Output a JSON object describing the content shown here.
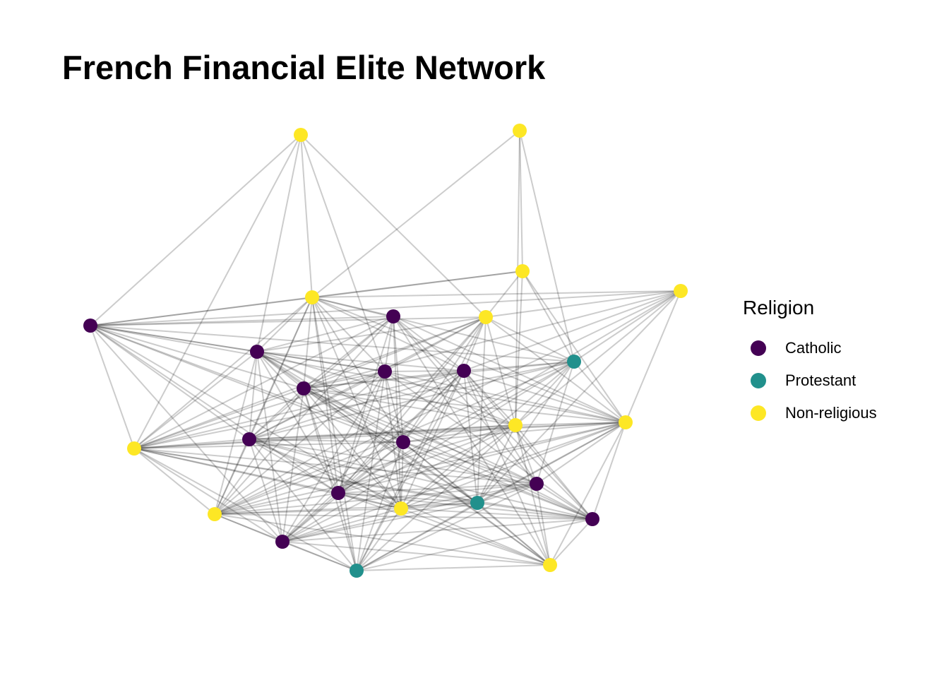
{
  "title": "French Financial Elite Network",
  "legend": {
    "title": "Religion",
    "items": [
      {
        "label": "Catholic",
        "color": "#440154"
      },
      {
        "label": "Protestant",
        "color": "#21908C"
      },
      {
        "label": "Non-religious",
        "color": "#FDE725"
      }
    ]
  },
  "edge_color": "#000000",
  "nodes": [
    {
      "id": "n1",
      "religion": "Non-religious"
    },
    {
      "id": "n2",
      "religion": "Non-religious"
    },
    {
      "id": "n3",
      "religion": "Non-religious"
    },
    {
      "id": "n4",
      "religion": "Non-religious"
    },
    {
      "id": "n5",
      "religion": "Non-religious"
    },
    {
      "id": "n6",
      "religion": "Catholic"
    },
    {
      "id": "n7",
      "religion": "Catholic"
    },
    {
      "id": "n8",
      "religion": "Non-religious"
    },
    {
      "id": "n9",
      "religion": "Catholic"
    },
    {
      "id": "n10",
      "religion": "Protestant"
    },
    {
      "id": "n11",
      "religion": "Catholic"
    },
    {
      "id": "n12",
      "religion": "Catholic"
    },
    {
      "id": "n13",
      "religion": "Catholic"
    },
    {
      "id": "n14",
      "religion": "Non-religious"
    },
    {
      "id": "n15",
      "religion": "Non-religious"
    },
    {
      "id": "n16",
      "religion": "Non-religious"
    },
    {
      "id": "n17",
      "religion": "Catholic"
    },
    {
      "id": "n18",
      "religion": "Catholic"
    },
    {
      "id": "n19",
      "religion": "Catholic"
    },
    {
      "id": "n20",
      "religion": "Non-religious"
    },
    {
      "id": "n21",
      "religion": "Protestant"
    },
    {
      "id": "n22",
      "religion": "Catholic"
    },
    {
      "id": "n23",
      "religion": "Catholic"
    },
    {
      "id": "n24",
      "religion": "Non-religious"
    },
    {
      "id": "n25",
      "religion": "Catholic"
    },
    {
      "id": "n26",
      "religion": "Non-religious"
    },
    {
      "id": "n27",
      "religion": "Protestant"
    }
  ],
  "edges": [
    [
      "n1",
      "n5"
    ],
    [
      "n1",
      "n11"
    ],
    [
      "n1",
      "n8"
    ],
    [
      "n1",
      "n6"
    ],
    [
      "n1",
      "n16"
    ],
    [
      "n1",
      "n9"
    ],
    [
      "n2",
      "n5"
    ],
    [
      "n2",
      "n10"
    ],
    [
      "n2",
      "n4"
    ],
    [
      "n2",
      "n14"
    ],
    [
      "n3",
      "n5"
    ],
    [
      "n3",
      "n10"
    ],
    [
      "n3",
      "n6"
    ],
    [
      "n3",
      "n8"
    ],
    [
      "n3",
      "n14"
    ],
    [
      "n3",
      "n12"
    ],
    [
      "n3",
      "n13"
    ],
    [
      "n3",
      "n21"
    ],
    [
      "n3",
      "n15"
    ],
    [
      "n3",
      "n22"
    ],
    [
      "n3",
      "n24"
    ],
    [
      "n4",
      "n5"
    ],
    [
      "n4",
      "n6"
    ],
    [
      "n4",
      "n8"
    ],
    [
      "n4",
      "n10"
    ],
    [
      "n4",
      "n15"
    ],
    [
      "n4",
      "n14"
    ],
    [
      "n5",
      "n6"
    ],
    [
      "n5",
      "n7"
    ],
    [
      "n5",
      "n9"
    ],
    [
      "n5",
      "n10"
    ],
    [
      "n5",
      "n11"
    ],
    [
      "n5",
      "n12"
    ],
    [
      "n5",
      "n13"
    ],
    [
      "n5",
      "n15"
    ],
    [
      "n5",
      "n16"
    ],
    [
      "n5",
      "n17"
    ],
    [
      "n5",
      "n18"
    ],
    [
      "n5",
      "n20"
    ],
    [
      "n5",
      "n22"
    ],
    [
      "n5",
      "n24"
    ],
    [
      "n5",
      "n27"
    ],
    [
      "n6",
      "n7"
    ],
    [
      "n6",
      "n8"
    ],
    [
      "n6",
      "n9"
    ],
    [
      "n6",
      "n10"
    ],
    [
      "n6",
      "n11"
    ],
    [
      "n6",
      "n13"
    ],
    [
      "n6",
      "n15"
    ],
    [
      "n6",
      "n16"
    ],
    [
      "n6",
      "n17"
    ],
    [
      "n6",
      "n18"
    ],
    [
      "n6",
      "n20"
    ],
    [
      "n6",
      "n22"
    ],
    [
      "n6",
      "n23"
    ],
    [
      "n6",
      "n25"
    ],
    [
      "n7",
      "n9"
    ],
    [
      "n7",
      "n11"
    ],
    [
      "n7",
      "n12"
    ],
    [
      "n7",
      "n13"
    ],
    [
      "n7",
      "n15"
    ],
    [
      "n7",
      "n16"
    ],
    [
      "n7",
      "n17"
    ],
    [
      "n7",
      "n18"
    ],
    [
      "n7",
      "n19"
    ],
    [
      "n7",
      "n20"
    ],
    [
      "n7",
      "n22"
    ],
    [
      "n7",
      "n23"
    ],
    [
      "n7",
      "n24"
    ],
    [
      "n7",
      "n26"
    ],
    [
      "n8",
      "n9"
    ],
    [
      "n8",
      "n10"
    ],
    [
      "n8",
      "n11"
    ],
    [
      "n8",
      "n12"
    ],
    [
      "n8",
      "n13"
    ],
    [
      "n8",
      "n14"
    ],
    [
      "n8",
      "n15"
    ],
    [
      "n8",
      "n16"
    ],
    [
      "n8",
      "n17"
    ],
    [
      "n8",
      "n18"
    ],
    [
      "n8",
      "n21"
    ],
    [
      "n8",
      "n22"
    ],
    [
      "n8",
      "n25"
    ],
    [
      "n8",
      "n27"
    ],
    [
      "n9",
      "n11"
    ],
    [
      "n9",
      "n12"
    ],
    [
      "n9",
      "n13"
    ],
    [
      "n9",
      "n14"
    ],
    [
      "n9",
      "n16"
    ],
    [
      "n9",
      "n17"
    ],
    [
      "n9",
      "n18"
    ],
    [
      "n9",
      "n19"
    ],
    [
      "n9",
      "n20"
    ],
    [
      "n9",
      "n21"
    ],
    [
      "n9",
      "n22"
    ],
    [
      "n9",
      "n23"
    ],
    [
      "n9",
      "n24"
    ],
    [
      "n9",
      "n25"
    ],
    [
      "n9",
      "n26"
    ],
    [
      "n10",
      "n12"
    ],
    [
      "n10",
      "n13"
    ],
    [
      "n10",
      "n14"
    ],
    [
      "n10",
      "n15"
    ],
    [
      "n10",
      "n16"
    ],
    [
      "n10",
      "n17"
    ],
    [
      "n10",
      "n19"
    ],
    [
      "n10",
      "n20"
    ],
    [
      "n10",
      "n21"
    ],
    [
      "n10",
      "n22"
    ],
    [
      "n10",
      "n24"
    ],
    [
      "n10",
      "n25"
    ],
    [
      "n11",
      "n12"
    ],
    [
      "n11",
      "n13"
    ],
    [
      "n11",
      "n14"
    ],
    [
      "n11",
      "n15"
    ],
    [
      "n11",
      "n16"
    ],
    [
      "n11",
      "n17"
    ],
    [
      "n11",
      "n18"
    ],
    [
      "n11",
      "n20"
    ],
    [
      "n11",
      "n22"
    ],
    [
      "n11",
      "n23"
    ],
    [
      "n11",
      "n24"
    ],
    [
      "n11",
      "n25"
    ],
    [
      "n11",
      "n27"
    ],
    [
      "n12",
      "n13"
    ],
    [
      "n12",
      "n14"
    ],
    [
      "n12",
      "n15"
    ],
    [
      "n12",
      "n16"
    ],
    [
      "n12",
      "n17"
    ],
    [
      "n12",
      "n18"
    ],
    [
      "n12",
      "n19"
    ],
    [
      "n12",
      "n20"
    ],
    [
      "n12",
      "n21"
    ],
    [
      "n12",
      "n22"
    ],
    [
      "n12",
      "n23"
    ],
    [
      "n12",
      "n24"
    ],
    [
      "n12",
      "n25"
    ],
    [
      "n12",
      "n26"
    ],
    [
      "n12",
      "n27"
    ],
    [
      "n13",
      "n14"
    ],
    [
      "n13",
      "n15"
    ],
    [
      "n13",
      "n16"
    ],
    [
      "n13",
      "n17"
    ],
    [
      "n13",
      "n18"
    ],
    [
      "n13",
      "n19"
    ],
    [
      "n13",
      "n20"
    ],
    [
      "n13",
      "n21"
    ],
    [
      "n13",
      "n22"
    ],
    [
      "n13",
      "n23"
    ],
    [
      "n13",
      "n24"
    ],
    [
      "n13",
      "n25"
    ],
    [
      "n13",
      "n26"
    ],
    [
      "n13",
      "n27"
    ],
    [
      "n14",
      "n15"
    ],
    [
      "n14",
      "n16"
    ],
    [
      "n14",
      "n17"
    ],
    [
      "n14",
      "n18"
    ],
    [
      "n14",
      "n19"
    ],
    [
      "n14",
      "n20"
    ],
    [
      "n14",
      "n21"
    ],
    [
      "n14",
      "n22"
    ],
    [
      "n14",
      "n23"
    ],
    [
      "n14",
      "n24"
    ],
    [
      "n14",
      "n25"
    ],
    [
      "n14",
      "n26"
    ],
    [
      "n14",
      "n27"
    ],
    [
      "n15",
      "n16"
    ],
    [
      "n15",
      "n17"
    ],
    [
      "n15",
      "n18"
    ],
    [
      "n15",
      "n19"
    ],
    [
      "n15",
      "n20"
    ],
    [
      "n15",
      "n21"
    ],
    [
      "n15",
      "n22"
    ],
    [
      "n15",
      "n23"
    ],
    [
      "n15",
      "n24"
    ],
    [
      "n15",
      "n25"
    ],
    [
      "n15",
      "n26"
    ],
    [
      "n15",
      "n27"
    ],
    [
      "n16",
      "n17"
    ],
    [
      "n16",
      "n18"
    ],
    [
      "n16",
      "n19"
    ],
    [
      "n16",
      "n20"
    ],
    [
      "n16",
      "n21"
    ],
    [
      "n16",
      "n22"
    ],
    [
      "n16",
      "n23"
    ],
    [
      "n16",
      "n24"
    ],
    [
      "n16",
      "n25"
    ],
    [
      "n16",
      "n27"
    ],
    [
      "n17",
      "n18"
    ],
    [
      "n17",
      "n19"
    ],
    [
      "n17",
      "n20"
    ],
    [
      "n17",
      "n21"
    ],
    [
      "n17",
      "n22"
    ],
    [
      "n17",
      "n23"
    ],
    [
      "n17",
      "n24"
    ],
    [
      "n17",
      "n25"
    ],
    [
      "n17",
      "n26"
    ],
    [
      "n17",
      "n27"
    ],
    [
      "n18",
      "n19"
    ],
    [
      "n18",
      "n20"
    ],
    [
      "n18",
      "n21"
    ],
    [
      "n18",
      "n22"
    ],
    [
      "n18",
      "n23"
    ],
    [
      "n18",
      "n24"
    ],
    [
      "n18",
      "n25"
    ],
    [
      "n18",
      "n26"
    ],
    [
      "n18",
      "n27"
    ],
    [
      "n19",
      "n20"
    ],
    [
      "n19",
      "n21"
    ],
    [
      "n19",
      "n22"
    ],
    [
      "n19",
      "n23"
    ],
    [
      "n19",
      "n24"
    ],
    [
      "n19",
      "n25"
    ],
    [
      "n19",
      "n26"
    ],
    [
      "n19",
      "n27"
    ],
    [
      "n20",
      "n21"
    ],
    [
      "n20",
      "n22"
    ],
    [
      "n20",
      "n23"
    ],
    [
      "n20",
      "n24"
    ],
    [
      "n20",
      "n25"
    ],
    [
      "n20",
      "n26"
    ],
    [
      "n20",
      "n27"
    ],
    [
      "n21",
      "n22"
    ],
    [
      "n21",
      "n23"
    ],
    [
      "n21",
      "n24"
    ],
    [
      "n21",
      "n25"
    ],
    [
      "n21",
      "n26"
    ],
    [
      "n21",
      "n27"
    ],
    [
      "n22",
      "n23"
    ],
    [
      "n22",
      "n24"
    ],
    [
      "n22",
      "n25"
    ],
    [
      "n22",
      "n26"
    ],
    [
      "n22",
      "n27"
    ],
    [
      "n23",
      "n24"
    ],
    [
      "n23",
      "n25"
    ],
    [
      "n23",
      "n26"
    ],
    [
      "n23",
      "n27"
    ],
    [
      "n24",
      "n25"
    ],
    [
      "n24",
      "n26"
    ],
    [
      "n24",
      "n27"
    ],
    [
      "n25",
      "n26"
    ],
    [
      "n25",
      "n27"
    ],
    [
      "n26",
      "n27"
    ]
  ]
}
